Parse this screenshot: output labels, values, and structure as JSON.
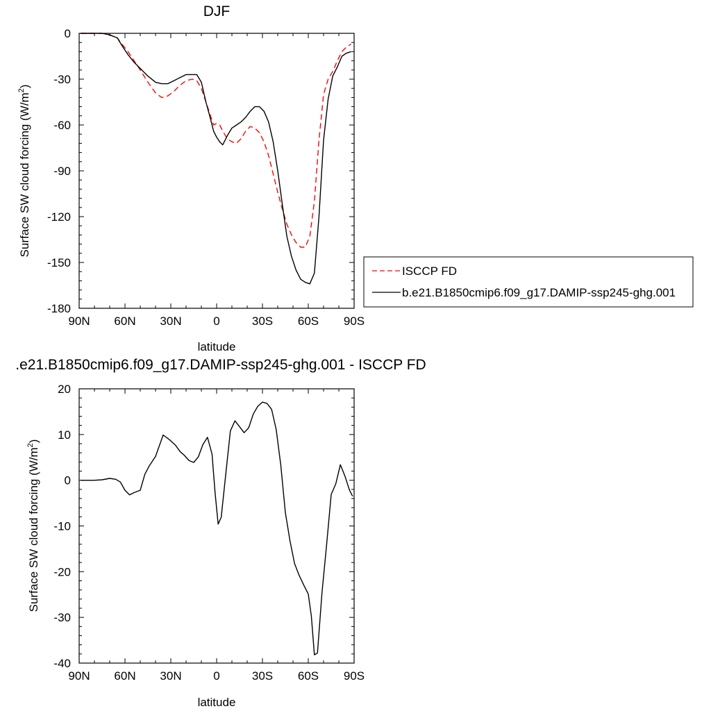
{
  "chart_data": [
    {
      "type": "line",
      "title": "DJF",
      "xlabel": "latitude",
      "ylabel_main": "Surface SW cloud forcing (W/m",
      "ylabel_sup": "2",
      "ylabel_close": ")",
      "xlim": [
        -90,
        90
      ],
      "ylim": [
        -180,
        0
      ],
      "xticks": [
        -90,
        -60,
        -30,
        0,
        30,
        60,
        90
      ],
      "xtick_labels": [
        "90N",
        "60N",
        "30N",
        "0",
        "30S",
        "60S",
        "90S"
      ],
      "yticks": [
        0,
        -30,
        -60,
        -90,
        -120,
        -150,
        -180
      ],
      "ytick_labels": [
        "0",
        "-30",
        "-60",
        "-90",
        "-120",
        "-150",
        "-180"
      ],
      "legend_position": "right",
      "series": [
        {
          "name": "ISCCP FD",
          "color": "#ff0000",
          "style": "dashed",
          "x": [
            -89,
            -85,
            -80,
            -75,
            -70,
            -65,
            -62,
            -58,
            -54,
            -50,
            -45,
            -40,
            -36,
            -32,
            -28,
            -24,
            -20,
            -16,
            -13,
            -10,
            -7,
            -4,
            -2,
            0,
            2,
            4,
            7,
            10,
            13,
            16,
            19,
            22,
            25,
            28,
            31,
            34,
            37,
            40,
            43,
            46,
            49,
            52,
            55,
            58,
            61,
            64,
            67,
            70,
            73,
            76,
            79,
            82,
            85,
            88
          ],
          "values": [
            0,
            0,
            0,
            0,
            -1,
            -3,
            -7,
            -12,
            -18,
            -24,
            -32,
            -39,
            -42,
            -41,
            -38,
            -34,
            -31,
            -30,
            -31,
            -36,
            -45,
            -54,
            -60,
            -59,
            -60,
            -64,
            -69,
            -71,
            -72,
            -69,
            -64,
            -61,
            -62,
            -65,
            -71,
            -80,
            -92,
            -104,
            -115,
            -125,
            -132,
            -137,
            -140,
            -140,
            -133,
            -110,
            -70,
            -40,
            -30,
            -25,
            -18,
            -12,
            -9,
            -7
          ]
        },
        {
          "name": "b.e21.B1850cmip6.f09_g17.DAMIP-ssp245-ghg.001",
          "color": "#000000",
          "style": "solid",
          "x": [
            -89,
            -85,
            -80,
            -75,
            -70,
            -65,
            -62,
            -58,
            -54,
            -50,
            -45,
            -40,
            -36,
            -32,
            -28,
            -24,
            -20,
            -16,
            -13,
            -10,
            -7,
            -4,
            -2,
            0,
            2,
            4,
            7,
            10,
            13,
            16,
            19,
            22,
            25,
            28,
            31,
            34,
            37,
            40,
            43,
            46,
            49,
            52,
            55,
            58,
            61,
            64,
            67,
            70,
            73,
            76,
            79,
            82,
            85,
            88
          ],
          "values": [
            0,
            0,
            0,
            0,
            -1,
            -3,
            -8,
            -14,
            -19,
            -23,
            -28,
            -32,
            -33,
            -33,
            -31,
            -29,
            -27,
            -27,
            -27,
            -32,
            -45,
            -56,
            -64,
            -68,
            -71,
            -73,
            -67,
            -62,
            -60,
            -58,
            -55,
            -51,
            -48,
            -48,
            -51,
            -58,
            -71,
            -90,
            -112,
            -133,
            -146,
            -155,
            -161,
            -163,
            -164,
            -157,
            -120,
            -70,
            -43,
            -28,
            -22,
            -15,
            -13,
            -12
          ]
        }
      ]
    },
    {
      "type": "line",
      "title": ".e21.B1850cmip6.f09_g17.DAMIP-ssp245-ghg.001 - ISCCP FD",
      "xlabel": "latitude",
      "ylabel_main": "Surface SW cloud forcing (W/m",
      "ylabel_sup": "2",
      "ylabel_close": ")",
      "xlim": [
        -90,
        90
      ],
      "ylim": [
        -40,
        20
      ],
      "xticks": [
        -90,
        -60,
        -30,
        0,
        30,
        60,
        90
      ],
      "xtick_labels": [
        "90N",
        "60N",
        "30N",
        "0",
        "30S",
        "60S",
        "90S"
      ],
      "yticks": [
        20,
        10,
        0,
        -10,
        -20,
        -30,
        -40
      ],
      "ytick_labels": [
        "20",
        "10",
        "0",
        "-10",
        "-20",
        "-30",
        "-40"
      ],
      "series": [
        {
          "color": "#000000",
          "style": "solid",
          "x": [
            -89,
            -85,
            -80,
            -75,
            -70,
            -66,
            -63,
            -60,
            -57,
            -54,
            -50,
            -47,
            -44,
            -40,
            -35,
            -31,
            -27,
            -24,
            -21,
            -18,
            -15,
            -12,
            -9,
            -6,
            -3,
            -1,
            1,
            3,
            6,
            9,
            12,
            15,
            18,
            21,
            24,
            27,
            30,
            33,
            36,
            39,
            42,
            45,
            48,
            51,
            54,
            57,
            60,
            62,
            64,
            66,
            69,
            72,
            75,
            78,
            81,
            84,
            87,
            89
          ],
          "values": [
            0,
            0,
            0,
            0.1,
            0.4,
            0.2,
            -0.4,
            -2.2,
            -3.2,
            -2.7,
            -2.2,
            1.3,
            3.2,
            5.2,
            9.9,
            8.9,
            7.7,
            6.3,
            5.4,
            4.3,
            3.9,
            5.1,
            7.8,
            9.4,
            5.7,
            -2.8,
            -9.6,
            -8.1,
            1.4,
            10.8,
            13.0,
            11.7,
            10.4,
            11.5,
            14.5,
            16.2,
            17.1,
            16.8,
            15.5,
            11.1,
            3.3,
            -7.1,
            -13.2,
            -18.2,
            -20.8,
            -22.9,
            -24.9,
            -29.7,
            -38.2,
            -37.8,
            -24.5,
            -14.1,
            -3.1,
            -0.8,
            3.4,
            0.9,
            -2.2,
            -3.5
          ]
        }
      ]
    }
  ]
}
